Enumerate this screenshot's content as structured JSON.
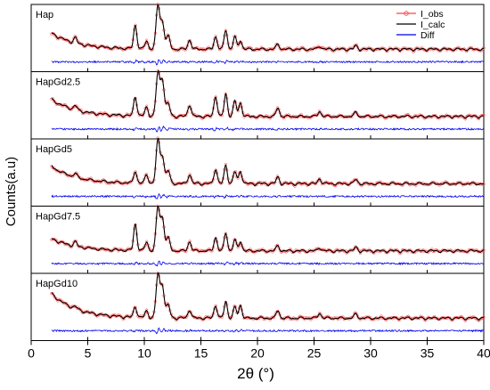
{
  "chart_data": {
    "type": "line",
    "xlabel": "2θ (°)",
    "ylabel": "Counts(a.u)",
    "xlim": [
      0,
      40
    ],
    "xticks": [
      0,
      5,
      10,
      15,
      20,
      25,
      30,
      35,
      40
    ],
    "x_range_data": [
      1.8,
      40
    ],
    "legend": {
      "placement": "top-right of first panel",
      "entries": [
        {
          "name": "I_obs",
          "color": "#ff4444",
          "marker": "open-circle"
        },
        {
          "name": "I_calc",
          "color": "#000000"
        },
        {
          "name": "Diff",
          "color": "#0000ee"
        }
      ]
    },
    "peaks_2theta": [
      3.9,
      9.2,
      10.2,
      11.2,
      11.6,
      12.1,
      14.0,
      16.3,
      17.2,
      18.0,
      18.5,
      21.8,
      25.5,
      28.7
    ],
    "panels": [
      {
        "label": "Hap",
        "peak_intensity": [
          0.12,
          0.55,
          0.18,
          1.0,
          0.62,
          0.3,
          0.22,
          0.3,
          0.45,
          0.28,
          0.2,
          0.12,
          0.08,
          0.08
        ],
        "background": {
          "start": 0.38,
          "end": 0.05,
          "decay": 0.45
        }
      },
      {
        "label": "HapGd2.5",
        "peak_intensity": [
          0.1,
          0.45,
          0.2,
          1.0,
          0.85,
          0.3,
          0.28,
          0.48,
          0.52,
          0.35,
          0.32,
          0.2,
          0.12,
          0.1
        ],
        "background": {
          "start": 0.4,
          "end": 0.05,
          "decay": 0.45
        }
      },
      {
        "label": "HapGd5",
        "peak_intensity": [
          0.08,
          0.28,
          0.2,
          1.0,
          0.62,
          0.3,
          0.22,
          0.35,
          0.42,
          0.28,
          0.3,
          0.15,
          0.12,
          0.1
        ],
        "background": {
          "start": 0.4,
          "end": 0.05,
          "decay": 0.45
        }
      },
      {
        "label": "HapGd7.5",
        "peak_intensity": [
          0.1,
          0.62,
          0.2,
          1.0,
          0.75,
          0.3,
          0.22,
          0.32,
          0.42,
          0.25,
          0.22,
          0.12,
          0.08,
          0.08
        ],
        "background": {
          "start": 0.3,
          "end": 0.05,
          "decay": 0.45
        }
      },
      {
        "label": "HapGd10",
        "peak_intensity": [
          0.05,
          0.25,
          0.15,
          1.0,
          0.75,
          0.3,
          0.2,
          0.3,
          0.38,
          0.25,
          0.3,
          0.18,
          0.12,
          0.1
        ],
        "background": {
          "start": 0.55,
          "end": 0.05,
          "decay": 0.45
        }
      }
    ]
  }
}
